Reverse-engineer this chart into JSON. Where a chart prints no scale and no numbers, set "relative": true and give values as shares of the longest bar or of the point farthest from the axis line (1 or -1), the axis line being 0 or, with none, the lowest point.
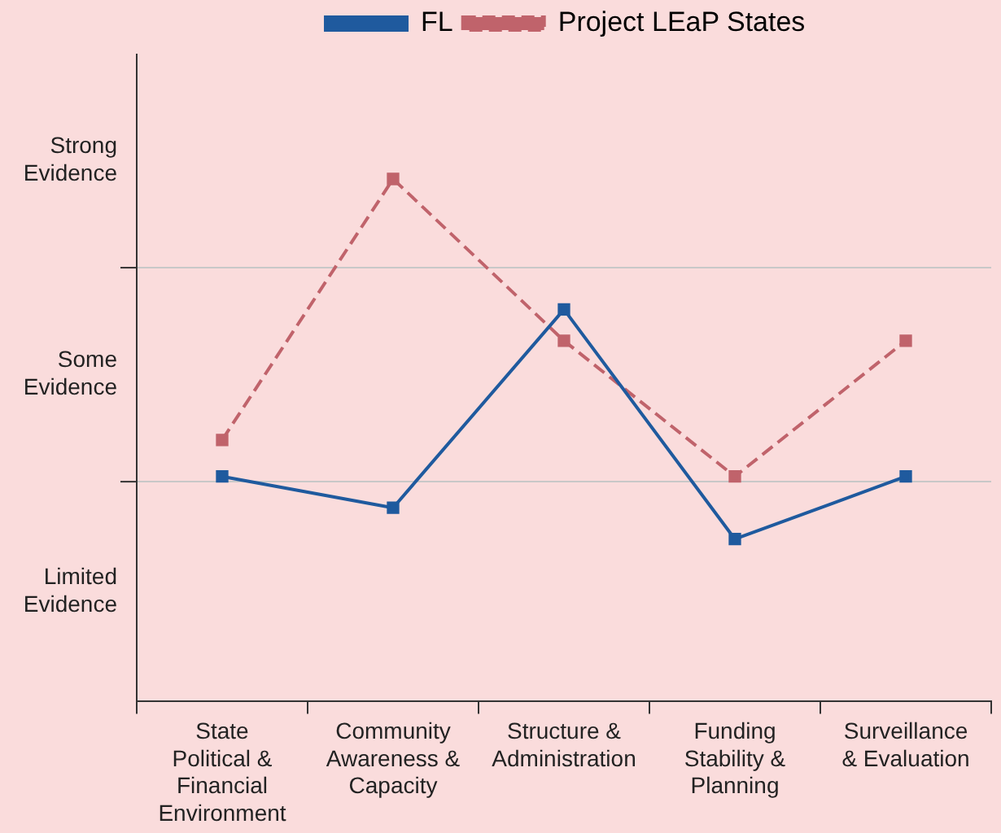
{
  "chart_data": {
    "type": "line",
    "relative": true,
    "categories": [
      "State Political & Financial Environment",
      "Community Awareness & Capacity",
      "Structure & Administration",
      "Funding Stability & Planning",
      "Surveillance & Evaluation"
    ],
    "series": [
      {
        "name": "FL",
        "color": "#1f5a9e",
        "values": [
          0.43,
          0.37,
          0.75,
          0.31,
          0.43
        ],
        "line_style": "solid"
      },
      {
        "name": "Project LEaP States",
        "color": "#c0636b",
        "values": [
          0.5,
          1,
          0.69,
          0.43,
          0.69
        ],
        "line_style": "dashed"
      }
    ],
    "ref_lines": [
      {
        "axis": "y",
        "value": 0.42,
        "color": "#c8c8c8"
      },
      {
        "axis": "y",
        "value": 0.83,
        "color": "#c8c8c8"
      }
    ],
    "annotations": [
      "Strong Evidence",
      "Some Evidence",
      "Limited Evidence"
    ],
    "legend": "top",
    "marker": "square"
  }
}
